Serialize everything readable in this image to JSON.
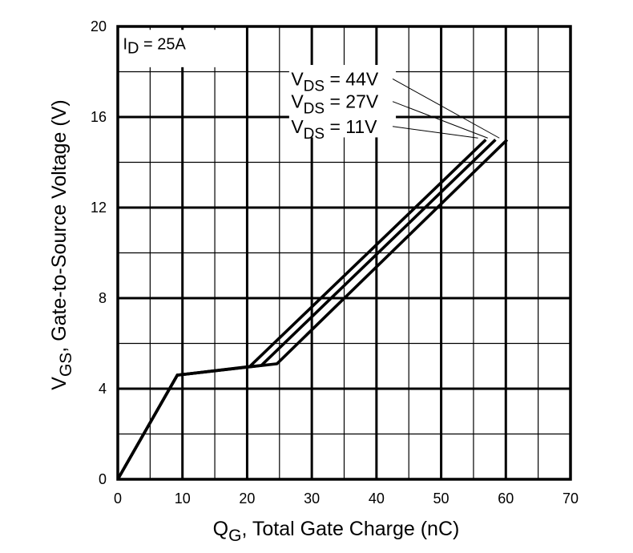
{
  "chart_data": {
    "type": "line",
    "xlabel": {
      "main": "Q",
      "sub": "G",
      "rest": ", Total Gate Charge (nC)"
    },
    "ylabel": {
      "main": "V",
      "sub": "GS",
      "rest": ", Gate-to-Source Voltage (V)"
    },
    "xlim": [
      0,
      70
    ],
    "ylim": [
      0,
      20
    ],
    "x_ticks": [
      0,
      10,
      20,
      30,
      40,
      50,
      60,
      70
    ],
    "y_ticks": [
      0,
      4,
      8,
      12,
      16,
      20
    ],
    "x_minor_step": 5,
    "y_minor_step": 2,
    "grid": true,
    "condition": {
      "main": "I",
      "sub": "D",
      "rest": " = 25A"
    },
    "series": [
      {
        "main": "V",
        "sub": "DS",
        "rest": " = 44V",
        "points": [
          [
            0,
            0
          ],
          [
            9.2,
            4.6
          ],
          [
            24.6,
            5.1
          ],
          [
            60.2,
            15.0
          ]
        ]
      },
      {
        "main": "V",
        "sub": "DS",
        "rest": " = 27V",
        "points": [
          [
            0,
            0
          ],
          [
            9.2,
            4.6
          ],
          [
            22.2,
            5.03
          ],
          [
            58.4,
            15.0
          ]
        ]
      },
      {
        "main": "V",
        "sub": "DS",
        "rest": " = 11V",
        "points": [
          [
            0,
            0
          ],
          [
            9.2,
            4.6
          ],
          [
            20.4,
            4.98
          ],
          [
            56.9,
            15.0
          ]
        ]
      }
    ],
    "colors": {
      "line": "#000000",
      "grid": "#000000",
      "background": "#ffffff"
    }
  }
}
